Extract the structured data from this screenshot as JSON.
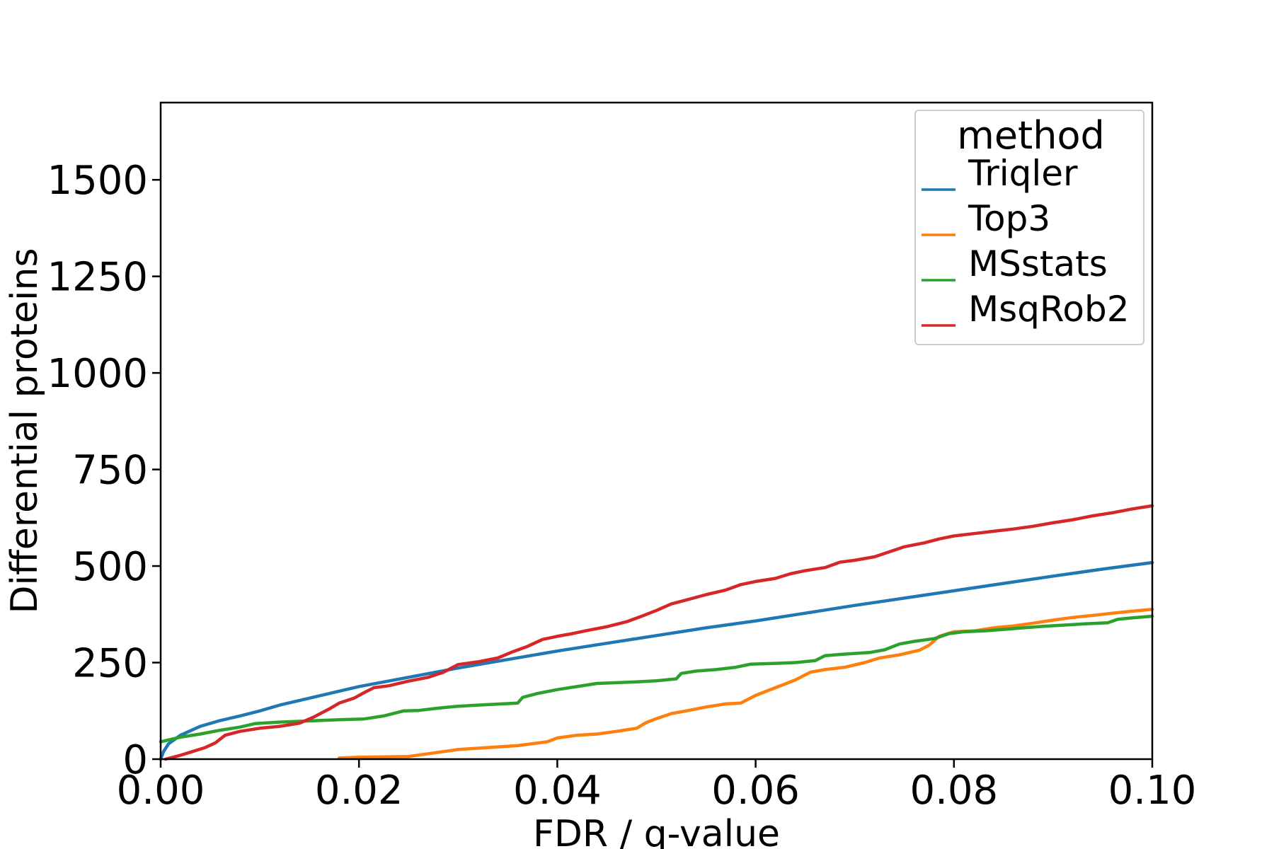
{
  "chart_data": {
    "type": "line",
    "xlabel": "FDR / q-value",
    "ylabel": "Differential proteins",
    "xlim": [
      0.0,
      0.1
    ],
    "ylim": [
      0,
      1700
    ],
    "xticks": [
      0.0,
      0.02,
      0.04,
      0.06,
      0.08,
      0.1
    ],
    "xtick_labels": [
      "0.00",
      "0.02",
      "0.04",
      "0.06",
      "0.08",
      "0.10"
    ],
    "yticks": [
      0,
      250,
      500,
      750,
      1000,
      1250,
      1500
    ],
    "ytick_labels": [
      "0",
      "250",
      "500",
      "750",
      "1000",
      "1250",
      "1500"
    ],
    "grid": false,
    "legend": {
      "title": "method",
      "placement": "top-right"
    },
    "series": [
      {
        "name": "Triqler",
        "color": "#1f77b4",
        "points": [
          [
            0.0,
            0
          ],
          [
            0.0003,
            20
          ],
          [
            0.0008,
            40
          ],
          [
            0.002,
            62
          ],
          [
            0.004,
            85
          ],
          [
            0.006,
            100
          ],
          [
            0.008,
            112
          ],
          [
            0.01,
            125
          ],
          [
            0.012,
            140
          ],
          [
            0.015,
            158
          ],
          [
            0.018,
            176
          ],
          [
            0.02,
            188
          ],
          [
            0.025,
            212
          ],
          [
            0.03,
            236
          ],
          [
            0.035,
            258
          ],
          [
            0.04,
            280
          ],
          [
            0.045,
            300
          ],
          [
            0.05,
            320
          ],
          [
            0.055,
            340
          ],
          [
            0.06,
            358
          ],
          [
            0.065,
            378
          ],
          [
            0.07,
            398
          ],
          [
            0.075,
            417
          ],
          [
            0.08,
            436
          ],
          [
            0.085,
            455
          ],
          [
            0.09,
            474
          ],
          [
            0.095,
            492
          ],
          [
            0.1,
            509
          ]
        ]
      },
      {
        "name": "Top3",
        "color": "#ff7f0e",
        "points": [
          [
            0.018,
            3
          ],
          [
            0.02,
            5
          ],
          [
            0.025,
            7
          ],
          [
            0.03,
            25
          ],
          [
            0.033,
            30
          ],
          [
            0.036,
            35
          ],
          [
            0.039,
            45
          ],
          [
            0.04,
            55
          ],
          [
            0.042,
            62
          ],
          [
            0.044,
            65
          ],
          [
            0.046,
            72
          ],
          [
            0.048,
            80
          ],
          [
            0.049,
            95
          ],
          [
            0.05,
            105
          ],
          [
            0.0515,
            118
          ],
          [
            0.053,
            125
          ],
          [
            0.055,
            135
          ],
          [
            0.057,
            143
          ],
          [
            0.0585,
            145
          ],
          [
            0.06,
            165
          ],
          [
            0.062,
            185
          ],
          [
            0.064,
            205
          ],
          [
            0.0655,
            225
          ],
          [
            0.067,
            232
          ],
          [
            0.069,
            238
          ],
          [
            0.071,
            250
          ],
          [
            0.0725,
            262
          ],
          [
            0.0745,
            270
          ],
          [
            0.0765,
            282
          ],
          [
            0.0775,
            295
          ],
          [
            0.0785,
            318
          ],
          [
            0.08,
            330
          ],
          [
            0.082,
            332
          ],
          [
            0.084,
            340
          ],
          [
            0.086,
            345
          ],
          [
            0.088,
            352
          ],
          [
            0.09,
            360
          ],
          [
            0.092,
            367
          ],
          [
            0.094,
            372
          ],
          [
            0.096,
            378
          ],
          [
            0.098,
            383
          ],
          [
            0.1,
            388
          ]
        ]
      },
      {
        "name": "MSstats",
        "color": "#2ca02c",
        "points": [
          [
            0.0,
            45
          ],
          [
            0.002,
            57
          ],
          [
            0.004,
            65
          ],
          [
            0.006,
            75
          ],
          [
            0.008,
            83
          ],
          [
            0.0095,
            92
          ],
          [
            0.012,
            96
          ],
          [
            0.014,
            98
          ],
          [
            0.016,
            100
          ],
          [
            0.018,
            102
          ],
          [
            0.0205,
            104
          ],
          [
            0.0225,
            112
          ],
          [
            0.0245,
            125
          ],
          [
            0.026,
            126
          ],
          [
            0.028,
            132
          ],
          [
            0.03,
            137
          ],
          [
            0.032,
            140
          ],
          [
            0.036,
            145
          ],
          [
            0.0365,
            160
          ],
          [
            0.038,
            170
          ],
          [
            0.04,
            180
          ],
          [
            0.042,
            188
          ],
          [
            0.044,
            196
          ],
          [
            0.046,
            198
          ],
          [
            0.048,
            200
          ],
          [
            0.05,
            203
          ],
          [
            0.052,
            208
          ],
          [
            0.0525,
            222
          ],
          [
            0.054,
            228
          ],
          [
            0.056,
            232
          ],
          [
            0.058,
            238
          ],
          [
            0.0595,
            246
          ],
          [
            0.062,
            248
          ],
          [
            0.064,
            250
          ],
          [
            0.066,
            255
          ],
          [
            0.067,
            268
          ],
          [
            0.069,
            272
          ],
          [
            0.0715,
            276
          ],
          [
            0.073,
            283
          ],
          [
            0.0745,
            298
          ],
          [
            0.076,
            305
          ],
          [
            0.078,
            312
          ],
          [
            0.0795,
            325
          ],
          [
            0.081,
            330
          ],
          [
            0.083,
            332
          ],
          [
            0.085,
            336
          ],
          [
            0.087,
            340
          ],
          [
            0.089,
            344
          ],
          [
            0.091,
            347
          ],
          [
            0.093,
            350
          ],
          [
            0.0955,
            353
          ],
          [
            0.0965,
            362
          ],
          [
            0.098,
            366
          ],
          [
            0.1,
            370
          ]
        ]
      },
      {
        "name": "MsqRob2",
        "color": "#d62728",
        "points": [
          [
            0.0005,
            0
          ],
          [
            0.002,
            10
          ],
          [
            0.003,
            18
          ],
          [
            0.0045,
            30
          ],
          [
            0.0055,
            42
          ],
          [
            0.0065,
            62
          ],
          [
            0.008,
            72
          ],
          [
            0.01,
            80
          ],
          [
            0.012,
            85
          ],
          [
            0.014,
            93
          ],
          [
            0.0155,
            110
          ],
          [
            0.017,
            130
          ],
          [
            0.018,
            145
          ],
          [
            0.0195,
            158
          ],
          [
            0.0205,
            172
          ],
          [
            0.0215,
            185
          ],
          [
            0.023,
            190
          ],
          [
            0.025,
            202
          ],
          [
            0.027,
            212
          ],
          [
            0.0285,
            225
          ],
          [
            0.03,
            245
          ],
          [
            0.032,
            252
          ],
          [
            0.034,
            262
          ],
          [
            0.0355,
            278
          ],
          [
            0.037,
            292
          ],
          [
            0.0385,
            310
          ],
          [
            0.04,
            318
          ],
          [
            0.0415,
            325
          ],
          [
            0.043,
            333
          ],
          [
            0.045,
            343
          ],
          [
            0.047,
            356
          ],
          [
            0.0485,
            370
          ],
          [
            0.05,
            385
          ],
          [
            0.0515,
            402
          ],
          [
            0.053,
            412
          ],
          [
            0.055,
            426
          ],
          [
            0.057,
            438
          ],
          [
            0.0585,
            452
          ],
          [
            0.06,
            460
          ],
          [
            0.062,
            468
          ],
          [
            0.0635,
            480
          ],
          [
            0.065,
            488
          ],
          [
            0.067,
            496
          ],
          [
            0.0685,
            510
          ],
          [
            0.07,
            515
          ],
          [
            0.072,
            524
          ],
          [
            0.0735,
            537
          ],
          [
            0.075,
            550
          ],
          [
            0.077,
            560
          ],
          [
            0.0785,
            570
          ],
          [
            0.08,
            578
          ],
          [
            0.082,
            584
          ],
          [
            0.084,
            590
          ],
          [
            0.086,
            596
          ],
          [
            0.088,
            603
          ],
          [
            0.09,
            612
          ],
          [
            0.092,
            620
          ],
          [
            0.094,
            630
          ],
          [
            0.096,
            638
          ],
          [
            0.098,
            648
          ],
          [
            0.1,
            656
          ]
        ]
      }
    ]
  }
}
